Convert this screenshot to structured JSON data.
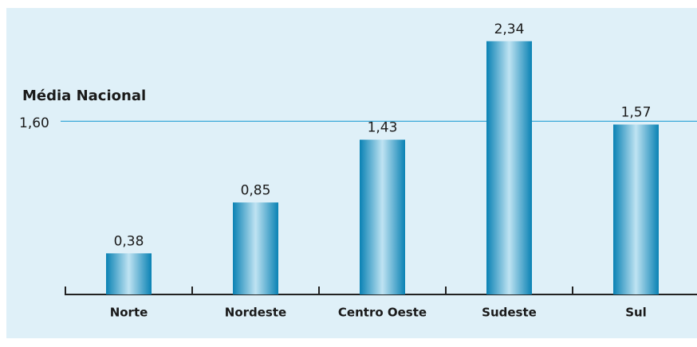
{
  "chart_data": {
    "type": "bar",
    "categories": [
      "Norte",
      "Nordeste",
      "Centro Oeste",
      "Sudeste",
      "Sul"
    ],
    "values": [
      0.38,
      0.85,
      1.43,
      2.34,
      1.57
    ],
    "value_labels": [
      "0,38",
      "0,85",
      "1,43",
      "2,34",
      "1,57"
    ],
    "color": "#0a82b4",
    "ylim": [
      0,
      2.5
    ],
    "reference_line": {
      "value": 1.6,
      "label": "1,60",
      "annotation": "Média Nacional",
      "color": "#3aa8d8"
    }
  }
}
